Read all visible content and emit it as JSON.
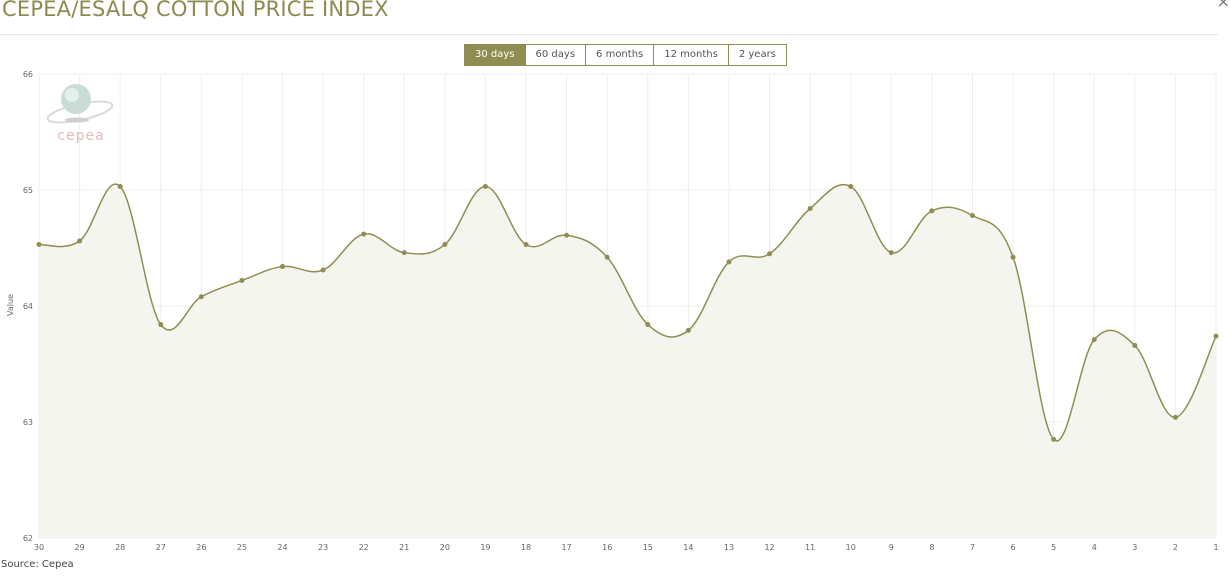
{
  "header": {
    "title": "CEPEA/ESALQ COTTON PRICE INDEX",
    "close": "×"
  },
  "ranges": [
    {
      "label": "30 days",
      "active": true
    },
    {
      "label": "60 days"
    },
    {
      "label": "6 months"
    },
    {
      "label": "12 months"
    },
    {
      "label": "2 years"
    }
  ],
  "logo": {
    "text": "cepea"
  },
  "source": "Source: Cepea",
  "colors": {
    "line": "#8f8d52",
    "fill": "#f5f5f0",
    "accent": "#8f8d52"
  },
  "chart_data": {
    "type": "area",
    "title": "",
    "xlabel": "",
    "ylabel": "Value",
    "ylim": [
      62,
      66
    ],
    "yticks": [
      62,
      63,
      64,
      65,
      66
    ],
    "grid": true,
    "smooth": true,
    "categories": [
      "30",
      "29",
      "28",
      "27",
      "26",
      "25",
      "24",
      "23",
      "22",
      "21",
      "20",
      "19",
      "18",
      "17",
      "16",
      "15",
      "14",
      "13",
      "12",
      "11",
      "10",
      "9",
      "8",
      "7",
      "6",
      "5",
      "4",
      "3",
      "2",
      "1"
    ],
    "values": [
      64.53,
      64.56,
      65.03,
      63.84,
      64.08,
      64.22,
      64.34,
      64.31,
      64.62,
      64.46,
      64.53,
      65.03,
      64.53,
      64.61,
      64.42,
      63.84,
      63.79,
      64.38,
      64.45,
      64.84,
      65.03,
      64.46,
      64.82,
      64.78,
      64.42,
      62.85,
      63.71,
      63.66,
      63.04,
      63.74
    ]
  }
}
